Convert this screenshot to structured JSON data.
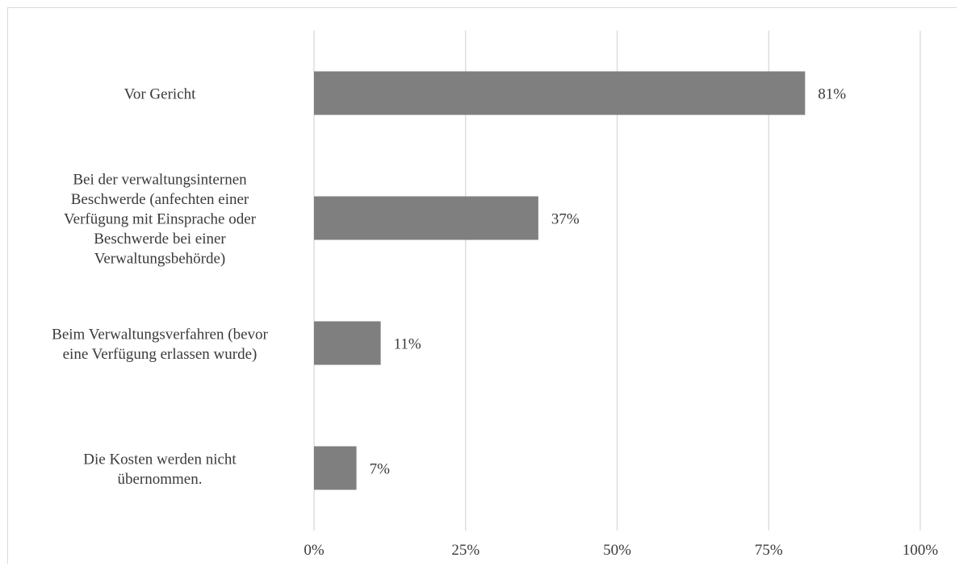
{
  "chart_data": {
    "type": "bar",
    "orientation": "horizontal",
    "categories": [
      "Vor Gericht",
      "Bei der verwaltungsinternen Beschwerde (anfechten einer Verfügung mit Einsprache oder Beschwerde bei einer Verwaltungsbehörde)",
      "Beim Verwaltungsverfahren (bevor eine Verfügung erlassen wurde)",
      "Die Kosten werden nicht übernommen."
    ],
    "category_lines": [
      [
        "Vor Gericht"
      ],
      [
        "Bei der verwaltungsinternen",
        "Beschwerde (anfechten einer",
        "Verfügung mit Einsprache oder",
        "Beschwerde bei einer",
        "Verwaltungsbehörde)"
      ],
      [
        "Beim Verwaltungsverfahren (bevor",
        "eine Verfügung erlassen wurde)"
      ],
      [
        "Die Kosten werden nicht",
        "übernommen."
      ]
    ],
    "values": [
      81,
      37,
      11,
      7
    ],
    "data_labels": [
      "81%",
      "37%",
      "11%",
      "7%"
    ],
    "x_ticks": [
      0,
      25,
      50,
      75,
      100
    ],
    "x_tick_labels": [
      "0%",
      "25%",
      "50%",
      "75%",
      "100%"
    ],
    "xlim": [
      0,
      100
    ],
    "title": "",
    "xlabel": "",
    "ylabel": "",
    "grid": "vertical",
    "legend": "none",
    "bar_color": "#7f7f7f",
    "grid_color": "#d9d9d9",
    "text_color": "#3a3a3a"
  }
}
